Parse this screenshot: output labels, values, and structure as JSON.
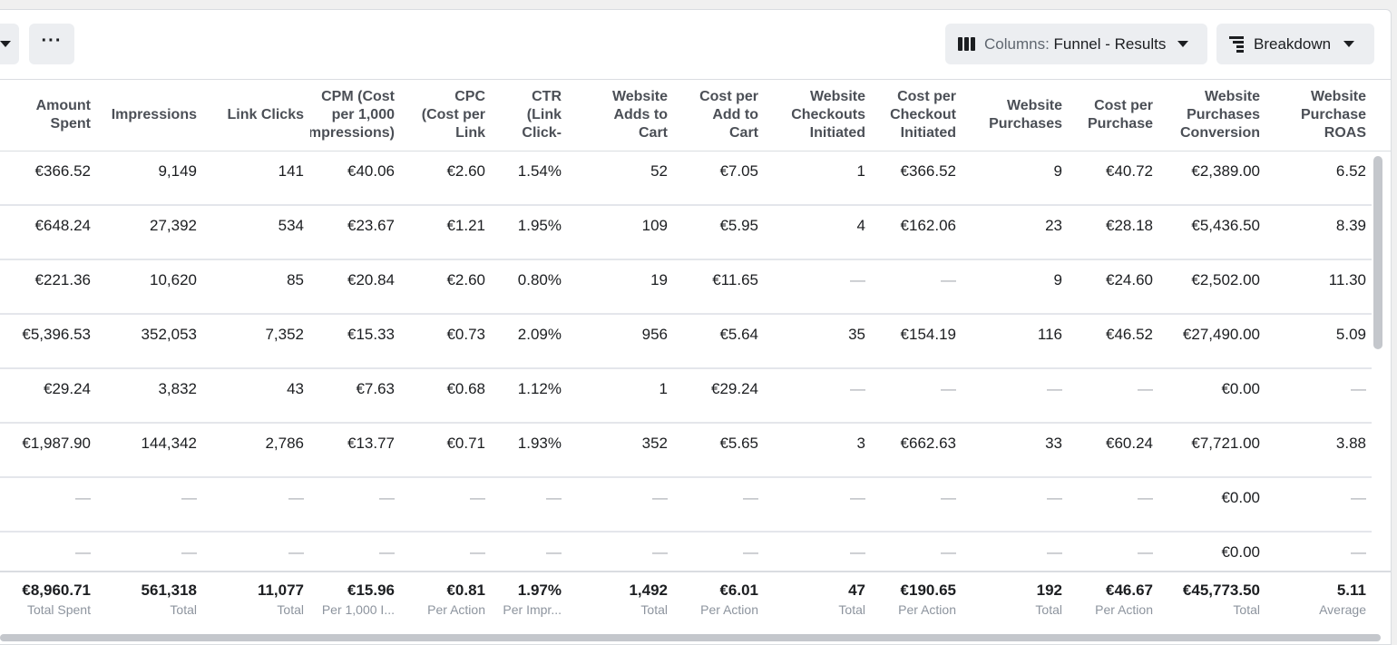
{
  "toolbar": {
    "more_label": "···",
    "columns_prefix": "Columns: ",
    "columns_value": "Funnel - Results",
    "breakdown_label": "Breakdown"
  },
  "headers": [
    [
      "Amount",
      "Spent"
    ],
    [
      "Impressions"
    ],
    [
      "Link Clicks"
    ],
    [
      "CPM (Cost",
      "per 1,000",
      "Impressions)"
    ],
    [
      "CPC",
      "(Cost per",
      "Link"
    ],
    [
      "CTR",
      "(Link",
      "Click-"
    ],
    [
      "Website",
      "Adds to",
      "Cart"
    ],
    [
      "Cost per",
      "Add to",
      "Cart"
    ],
    [
      "Website",
      "Checkouts",
      "Initiated"
    ],
    [
      "Cost per",
      "Checkout",
      "Initiated"
    ],
    [
      "Website",
      "Purchases"
    ],
    [
      "Cost per",
      "Purchase"
    ],
    [
      "Website",
      "Purchases",
      "Conversion"
    ],
    [
      "Website",
      "Purchase",
      "ROAS"
    ]
  ],
  "rows": [
    [
      "€366.52",
      "9,149",
      "141",
      "€40.06",
      "€2.60",
      "1.54%",
      "52",
      "€7.05",
      "1",
      "€366.52",
      "9",
      "€40.72",
      "€2,389.00",
      "6.52"
    ],
    [
      "€648.24",
      "27,392",
      "534",
      "€23.67",
      "€1.21",
      "1.95%",
      "109",
      "€5.95",
      "4",
      "€162.06",
      "23",
      "€28.18",
      "€5,436.50",
      "8.39"
    ],
    [
      "€221.36",
      "10,620",
      "85",
      "€20.84",
      "€2.60",
      "0.80%",
      "19",
      "€11.65",
      "—",
      "—",
      "9",
      "€24.60",
      "€2,502.00",
      "11.30"
    ],
    [
      "€5,396.53",
      "352,053",
      "7,352",
      "€15.33",
      "€0.73",
      "2.09%",
      "956",
      "€5.64",
      "35",
      "€154.19",
      "116",
      "€46.52",
      "€27,490.00",
      "5.09"
    ],
    [
      "€29.24",
      "3,832",
      "43",
      "€7.63",
      "€0.68",
      "1.12%",
      "1",
      "€29.24",
      "—",
      "—",
      "—",
      "—",
      "€0.00",
      "—"
    ],
    [
      "€1,987.90",
      "144,342",
      "2,786",
      "€13.77",
      "€0.71",
      "1.93%",
      "352",
      "€5.65",
      "3",
      "€662.63",
      "33",
      "€60.24",
      "€7,721.00",
      "3.88"
    ],
    [
      "—",
      "—",
      "—",
      "—",
      "—",
      "—",
      "—",
      "—",
      "—",
      "—",
      "—",
      "—",
      "€0.00",
      "—"
    ],
    [
      "—",
      "—",
      "—",
      "—",
      "—",
      "—",
      "—",
      "—",
      "—",
      "—",
      "—",
      "—",
      "€0.00",
      "—"
    ]
  ],
  "totals": [
    {
      "value": "€8,960.71",
      "label": "Total Spent"
    },
    {
      "value": "561,318",
      "label": "Total"
    },
    {
      "value": "11,077",
      "label": "Total"
    },
    {
      "value": "€15.96",
      "label": "Per 1,000 I..."
    },
    {
      "value": "€0.81",
      "label": "Per Action"
    },
    {
      "value": "1.97%",
      "label": "Per Impr..."
    },
    {
      "value": "1,492",
      "label": "Total"
    },
    {
      "value": "€6.01",
      "label": "Per Action"
    },
    {
      "value": "47",
      "label": "Total"
    },
    {
      "value": "€190.65",
      "label": "Per Action"
    },
    {
      "value": "192",
      "label": "Total"
    },
    {
      "value": "€46.67",
      "label": "Per Action"
    },
    {
      "value": "€45,773.50",
      "label": "Total"
    },
    {
      "value": "5.11",
      "label": "Average"
    }
  ]
}
